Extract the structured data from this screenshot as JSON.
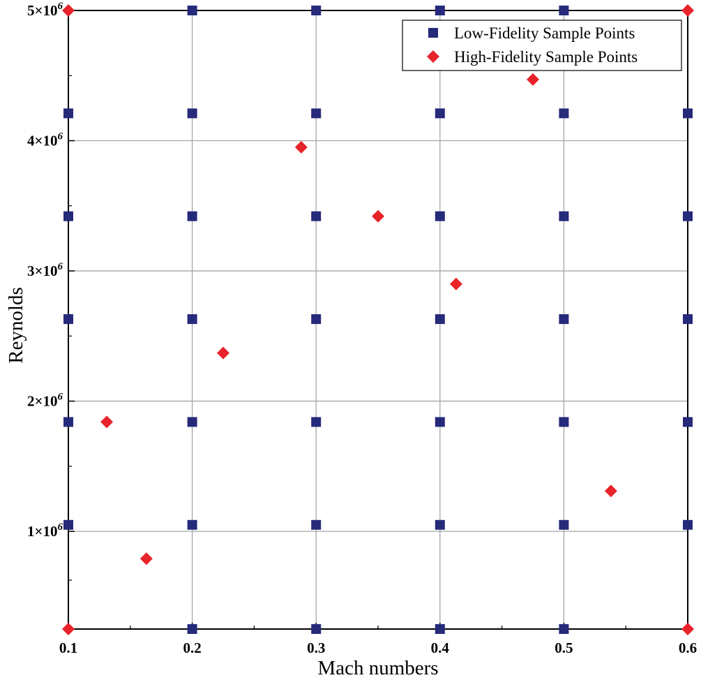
{
  "chart_data": {
    "type": "scatter",
    "xlabel": "Mach numbers",
    "ylabel": "Reynolds",
    "xlim": [
      0.1,
      0.6
    ],
    "ylim": [
      250000,
      5000000
    ],
    "grid": true,
    "legend_position": "top-right",
    "x_ticks": [
      {
        "value": 0.1,
        "label": "0.1"
      },
      {
        "value": 0.2,
        "label": "0.2"
      },
      {
        "value": 0.3,
        "label": "0.3"
      },
      {
        "value": 0.4,
        "label": "0.4"
      },
      {
        "value": 0.5,
        "label": "0.5"
      },
      {
        "value": 0.6,
        "label": "0.6"
      }
    ],
    "y_ticks": [
      {
        "value": 1000000,
        "base": "1×10",
        "exp": "6"
      },
      {
        "value": 2000000,
        "base": "2×10",
        "exp": "6"
      },
      {
        "value": 3000000,
        "base": "3×10",
        "exp": "6"
      },
      {
        "value": 4000000,
        "base": "4×10",
        "exp": "6"
      },
      {
        "value": 5000000,
        "base": "5×10",
        "exp": "6"
      }
    ],
    "series": [
      {
        "name": "Low-Fidelity Sample Points",
        "marker": "square",
        "color": "#262a7a",
        "points": [
          [
            0.1,
            1050000
          ],
          [
            0.1,
            1840000
          ],
          [
            0.1,
            2630000
          ],
          [
            0.1,
            3420000
          ],
          [
            0.1,
            4210000
          ],
          [
            0.2,
            250000
          ],
          [
            0.2,
            1050000
          ],
          [
            0.2,
            1840000
          ],
          [
            0.2,
            2630000
          ],
          [
            0.2,
            3420000
          ],
          [
            0.2,
            4210000
          ],
          [
            0.2,
            5000000
          ],
          [
            0.3,
            250000
          ],
          [
            0.3,
            1050000
          ],
          [
            0.3,
            1840000
          ],
          [
            0.3,
            2630000
          ],
          [
            0.3,
            3420000
          ],
          [
            0.3,
            4210000
          ],
          [
            0.3,
            5000000
          ],
          [
            0.4,
            250000
          ],
          [
            0.4,
            1050000
          ],
          [
            0.4,
            1840000
          ],
          [
            0.4,
            2630000
          ],
          [
            0.4,
            3420000
          ],
          [
            0.4,
            4210000
          ],
          [
            0.4,
            5000000
          ],
          [
            0.5,
            250000
          ],
          [
            0.5,
            1050000
          ],
          [
            0.5,
            1840000
          ],
          [
            0.5,
            2630000
          ],
          [
            0.5,
            3420000
          ],
          [
            0.5,
            4210000
          ],
          [
            0.5,
            5000000
          ],
          [
            0.6,
            1050000
          ],
          [
            0.6,
            1840000
          ],
          [
            0.6,
            2630000
          ],
          [
            0.6,
            3420000
          ],
          [
            0.6,
            4210000
          ]
        ]
      },
      {
        "name": "High-Fidelity Sample Points",
        "marker": "diamond",
        "color": "#e8232a",
        "points": [
          [
            0.1,
            250000
          ],
          [
            0.1,
            5000000
          ],
          [
            0.6,
            250000
          ],
          [
            0.6,
            5000000
          ],
          [
            0.131,
            1840000
          ],
          [
            0.163,
            790000
          ],
          [
            0.225,
            2370000
          ],
          [
            0.288,
            3950000
          ],
          [
            0.35,
            3420000
          ],
          [
            0.413,
            2900000
          ],
          [
            0.475,
            4470000
          ],
          [
            0.538,
            1310000
          ]
        ]
      }
    ]
  }
}
